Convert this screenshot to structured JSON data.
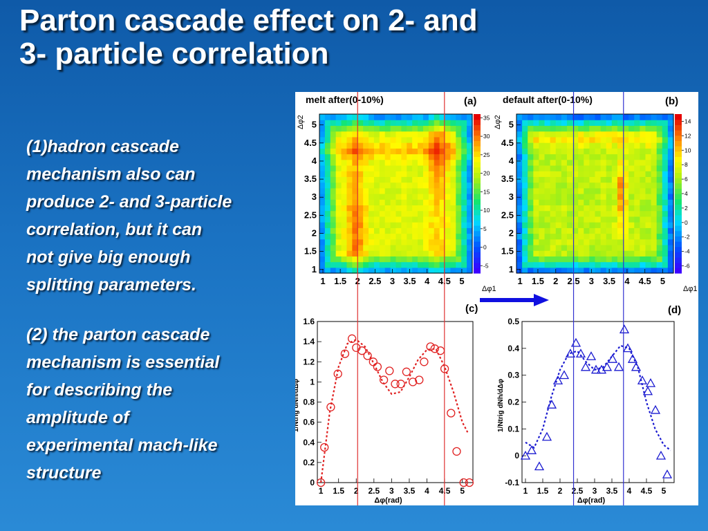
{
  "slide": {
    "title_line1": "Parton cascade effect on 2- and",
    "title_line2": "3- particle correlation",
    "para1": [
      "(1)hadron cascade",
      "mechanism also can",
      "produce 2- and 3-particle",
      "correlation, but it can",
      "not give big enough",
      "splitting parameters."
    ],
    "para2": [
      "(2) the parton cascade",
      "mechanism is  essential",
      "for describing the",
      "amplitude of",
      "experimental mach-like",
      "structure"
    ]
  },
  "chart_data": [
    {
      "type": "heatmap",
      "panel": "(a)",
      "title": "melt after(0-10%)",
      "xlabel": "Δφ1",
      "ylabel": "Δφ2",
      "xlim": [
        0.9,
        5.3
      ],
      "ylim": [
        0.9,
        5.3
      ],
      "x_ticks": [
        "1",
        "1.5",
        "2",
        "2.5",
        "3",
        "3.5",
        "4",
        "4.5",
        "5"
      ],
      "y_ticks": [
        "1",
        "1.5",
        "2",
        "2.5",
        "3",
        "3.5",
        "4",
        "4.5",
        "5"
      ],
      "colorbar_ticks": [
        "-5",
        "0",
        "5",
        "10",
        "15",
        "20",
        "25",
        "30",
        "35"
      ],
      "zlim": [
        -7,
        36
      ]
    },
    {
      "type": "heatmap",
      "panel": "(b)",
      "title": "default after(0-10%)",
      "xlabel": "Δφ1",
      "ylabel": "Δφ2",
      "xlim": [
        0.9,
        5.3
      ],
      "ylim": [
        0.9,
        5.3
      ],
      "x_ticks": [
        "1",
        "1.5",
        "2",
        "2.5",
        "3",
        "3.5",
        "4",
        "4.5",
        "5"
      ],
      "y_ticks": [
        "1",
        "1.5",
        "2",
        "2.5",
        "3",
        "3.5",
        "4",
        "4.5",
        "5"
      ],
      "colorbar_ticks": [
        "-6",
        "-4",
        "-2",
        "0",
        "2",
        "4",
        "6",
        "8",
        "10",
        "12",
        "14"
      ],
      "zlim": [
        -7,
        15
      ]
    },
    {
      "type": "scatter",
      "panel": "(c)",
      "xlabel": "Δφ(rad)",
      "ylabel": "1/Ntrig dNh/dΔφ",
      "xlim": [
        0.9,
        5.3
      ],
      "ylim": [
        0,
        1.6
      ],
      "x_ticks": [
        "1",
        "1.5",
        "2",
        "2.5",
        "3",
        "3.5",
        "4",
        "4.5",
        "5"
      ],
      "y_ticks": [
        "0",
        "0.2",
        "0.4",
        "0.6",
        "0.8",
        "1",
        "1.2",
        "1.4",
        "1.6"
      ],
      "marker": "circle",
      "color": "#e02020",
      "points": {
        "x": [
          1.0,
          1.1,
          1.28,
          1.48,
          1.68,
          1.88,
          2.0,
          2.16,
          2.32,
          2.48,
          2.6,
          2.78,
          2.94,
          3.1,
          3.26,
          3.42,
          3.6,
          3.78,
          3.92,
          4.1,
          4.22,
          4.38,
          4.5,
          4.68,
          4.84,
          5.04,
          5.2
        ],
        "y": [
          0.0,
          0.35,
          0.75,
          1.08,
          1.28,
          1.43,
          1.34,
          1.31,
          1.26,
          1.2,
          1.15,
          1.02,
          1.11,
          0.98,
          0.98,
          1.1,
          1.0,
          1.02,
          1.2,
          1.35,
          1.33,
          1.31,
          1.13,
          0.69,
          0.31,
          0,
          0
        ]
      },
      "fit": {
        "x": [
          1.0,
          1.25,
          1.5,
          1.75,
          2.0,
          2.25,
          2.5,
          2.75,
          3.0,
          3.25,
          3.5,
          3.75,
          4.0,
          4.25,
          4.5,
          4.75,
          5.0,
          5.15
        ],
        "y": [
          0.0,
          0.7,
          1.15,
          1.38,
          1.42,
          1.35,
          1.18,
          1.0,
          0.88,
          0.9,
          1.05,
          1.22,
          1.32,
          1.33,
          1.15,
          0.9,
          0.6,
          0.5
        ]
      }
    },
    {
      "type": "scatter",
      "panel": "(d)",
      "xlabel": "Δφ(rad)",
      "ylabel": "1/Ntrig dNh/dΔφ",
      "xlim": [
        0.9,
        5.3
      ],
      "ylim": [
        -0.1,
        0.5
      ],
      "x_ticks": [
        "1",
        "1.5",
        "2",
        "2.5",
        "3",
        "3.5",
        "4",
        "4.5",
        "5"
      ],
      "y_ticks": [
        "-0.1",
        "0",
        "0.1",
        "0.2",
        "0.3",
        "0.4",
        "0.5"
      ],
      "marker": "triangle",
      "color": "#1a1ad0",
      "points": {
        "x": [
          1.0,
          1.18,
          1.4,
          1.62,
          1.76,
          1.94,
          2.12,
          2.3,
          2.46,
          2.6,
          2.74,
          2.9,
          3.04,
          3.2,
          3.36,
          3.52,
          3.7,
          3.86,
          3.96,
          4.1,
          4.2,
          4.38,
          4.54,
          4.62,
          4.76,
          4.92,
          5.1
        ],
        "y": [
          0.0,
          0.02,
          -0.04,
          0.07,
          0.19,
          0.28,
          0.3,
          0.38,
          0.42,
          0.38,
          0.33,
          0.37,
          0.32,
          0.32,
          0.33,
          0.36,
          0.33,
          0.47,
          0.4,
          0.36,
          0.33,
          0.28,
          0.24,
          0.27,
          0.17,
          0.0,
          -0.07
        ]
      },
      "fit": {
        "x": [
          1.0,
          1.25,
          1.5,
          1.75,
          2.0,
          2.25,
          2.5,
          2.75,
          3.0,
          3.25,
          3.5,
          3.75,
          4.0,
          4.25,
          4.5,
          4.75,
          5.0,
          5.2
        ],
        "y": [
          0.05,
          0.03,
          0.1,
          0.22,
          0.32,
          0.38,
          0.39,
          0.35,
          0.32,
          0.33,
          0.37,
          0.41,
          0.4,
          0.33,
          0.2,
          0.1,
          0.04,
          0.02
        ]
      }
    }
  ],
  "figure_labels": {
    "panel_c_tag": "(c)",
    "panel_d_tag": "(d)"
  },
  "colors": {
    "red_marker": "#e02020",
    "blue_marker": "#1a1ad0",
    "arrow": "#1010e0",
    "vline_red": "#e03030",
    "vline_blue": "#3030d0"
  }
}
